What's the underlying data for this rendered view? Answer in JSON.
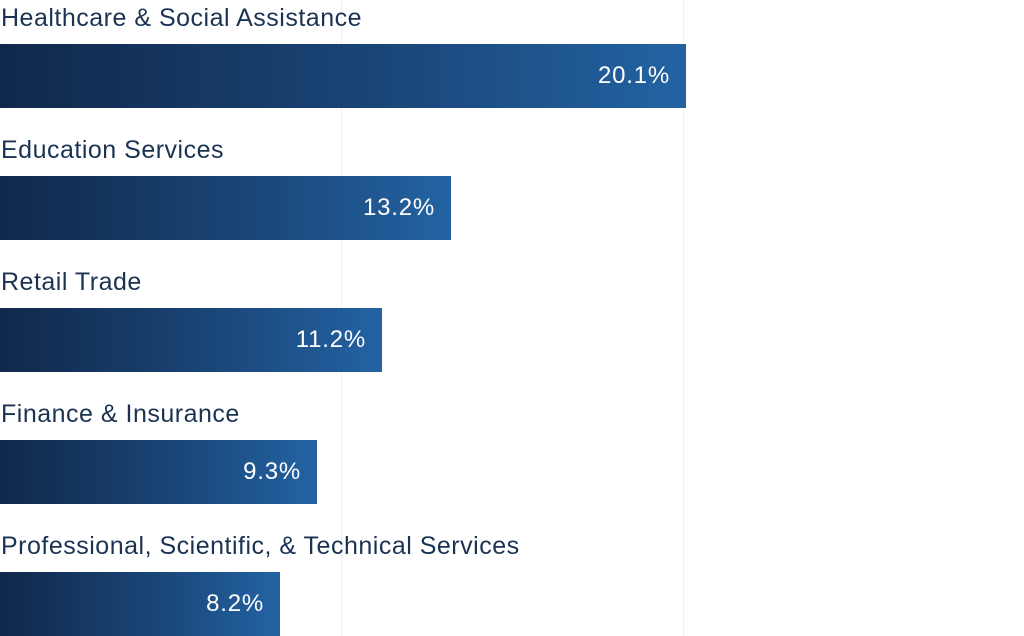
{
  "chart_data": {
    "type": "bar",
    "orientation": "horizontal",
    "categories": [
      "Healthcare & Social Assistance",
      "Education Services",
      "Retail Trade",
      "Finance & Insurance",
      "Professional, Scientific, & Technical Services"
    ],
    "values": [
      20.1,
      13.2,
      11.2,
      9.3,
      8.2
    ],
    "value_labels": [
      "20.1%",
      "13.2%",
      "11.2%",
      "9.3%",
      "8.2%"
    ],
    "xlim": [
      0,
      30
    ],
    "grid": true,
    "title": "",
    "xlabel": "",
    "ylabel": ""
  },
  "colors": {
    "bar_start": "#10284a",
    "bar_end": "#2363a3",
    "label_text": "#1b3352",
    "value_text": "#ffffff",
    "gridline": "#eef0f3"
  }
}
